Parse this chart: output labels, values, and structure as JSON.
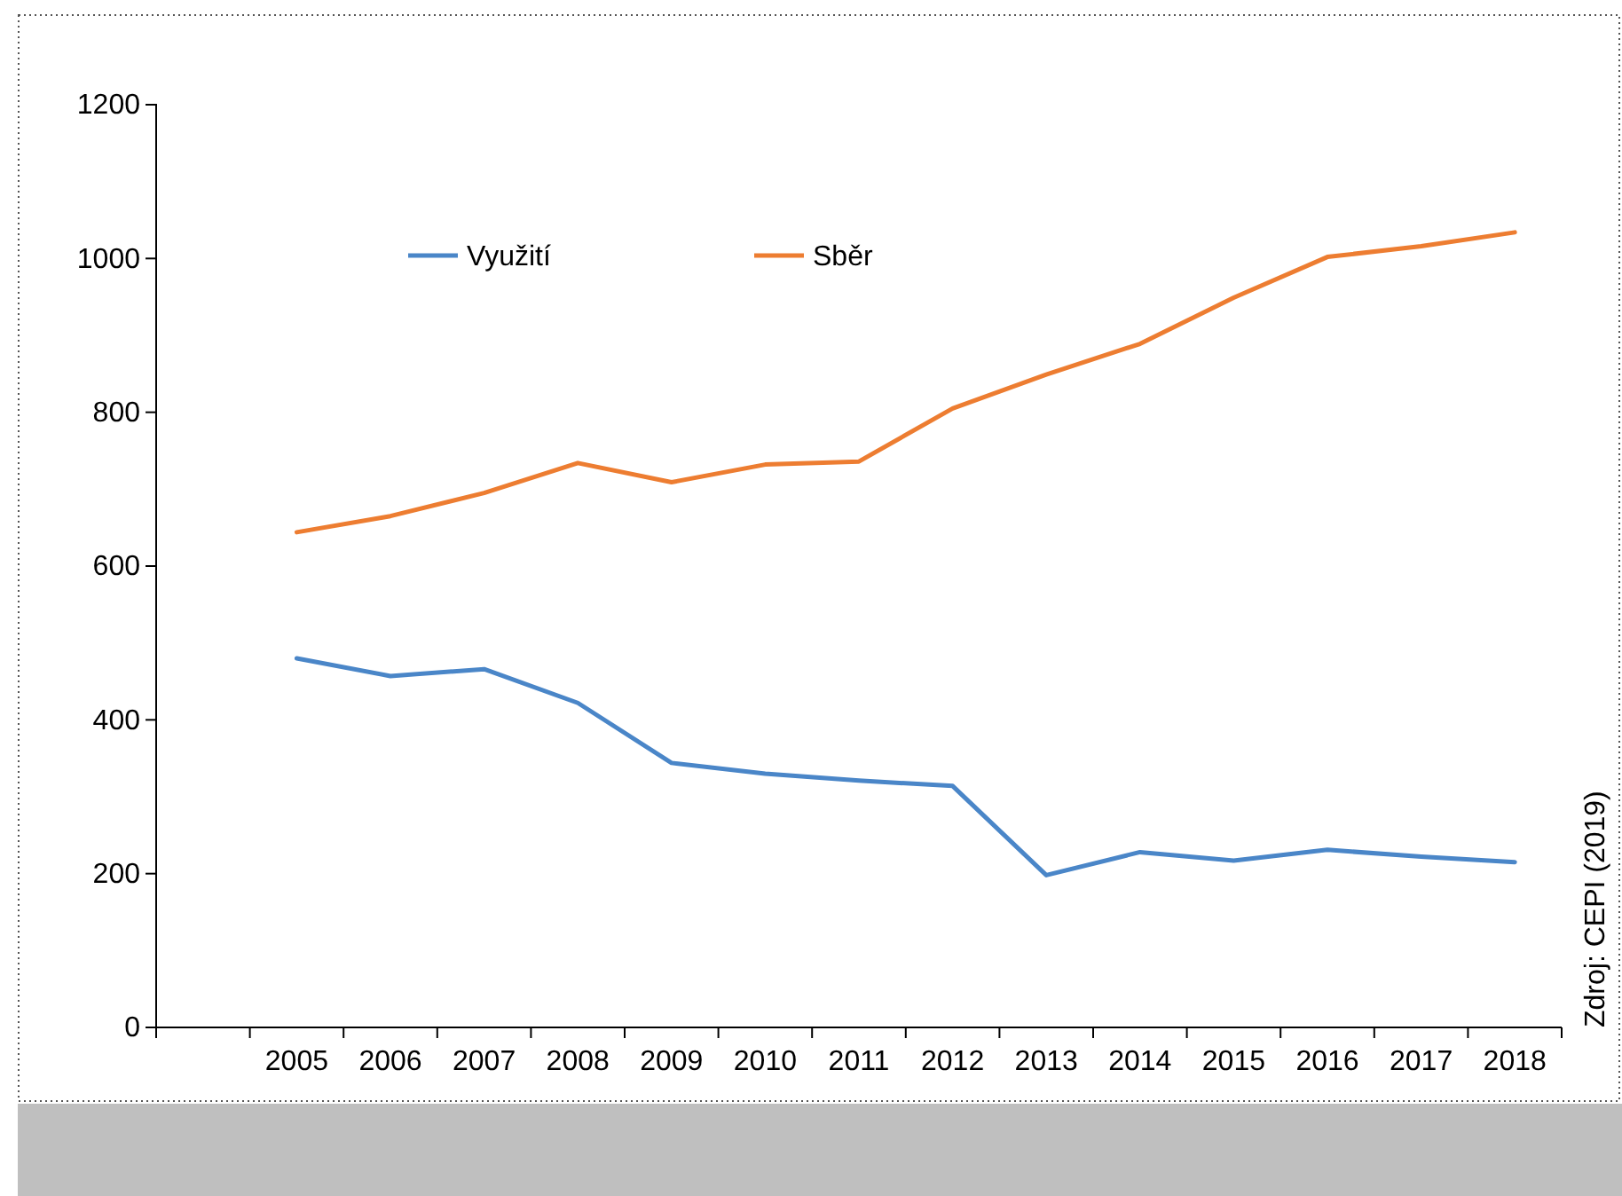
{
  "chart_data": {
    "type": "line",
    "categories": [
      null,
      "2005",
      "2006",
      "2007",
      "2008",
      "2009",
      "2010",
      "2011",
      "2012",
      "2013",
      "2014",
      "2015",
      "2016",
      "2017",
      "2018"
    ],
    "series": [
      {
        "name": "Využití",
        "color": "#4a86c8",
        "values": [
          null,
          480,
          457,
          466,
          422,
          344,
          330,
          321,
          314,
          198,
          228,
          217,
          231,
          222,
          215
        ]
      },
      {
        "name": "Sběr",
        "color": "#ed7d31",
        "values": [
          null,
          644,
          665,
          695,
          734,
          709,
          732,
          736,
          805,
          849,
          889,
          949,
          1002,
          1016,
          1034
        ]
      }
    ],
    "ylim": [
      0,
      1200
    ],
    "yticks": [
      0,
      200,
      400,
      600,
      800,
      1000,
      1200
    ],
    "grid": false,
    "legend": "top left",
    "marker": "none",
    "line_style": "solid",
    "annotations": [
      "Zdroj: CEPI (2019)"
    ]
  }
}
